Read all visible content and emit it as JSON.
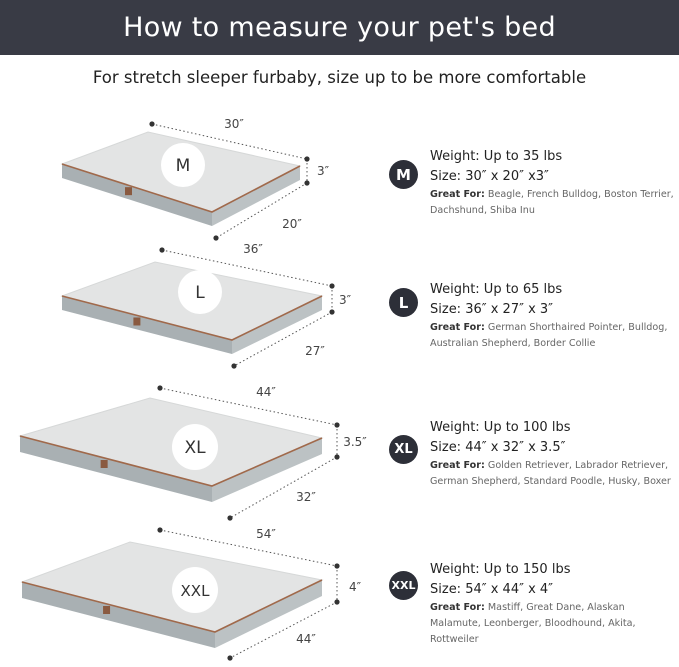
{
  "header": {
    "title": "How to measure your pet's bed"
  },
  "subtitle": "For stretch sleeper furbaby, size up to be more comfortable",
  "great_for_label": "Great For:",
  "colors": {
    "header_bg": "#393b45",
    "badge_bg": "#2d2f38",
    "bed_top": "#e3e4e4",
    "bed_side": "#a9b0b3",
    "piping": "#a0694b"
  },
  "beds": [
    {
      "size": "M",
      "length": "30″",
      "width": "20″",
      "height": "3″",
      "weight": "Weight: Up to 35 lbs",
      "dimensions": "Size: 30″ x 20″ x3″",
      "great_for": "Beagle, French Bulldog, Boston Terrier, Dachshund, Shiba Inu"
    },
    {
      "size": "L",
      "length": "36″",
      "width": "27″",
      "height": "3″",
      "weight": "Weight: Up to 65 lbs",
      "dimensions": "Size: 36″ x 27″ x 3″",
      "great_for": "German Shorthaired Pointer, Bulldog, Australian Shepherd, Border Collie"
    },
    {
      "size": "XL",
      "length": "44″",
      "width": "32″",
      "height": "3.5″",
      "weight": "Weight: Up to 100 lbs",
      "dimensions": "Size:  44″ x 32″ x 3.5″",
      "great_for": "Golden Retriever, Labrador Retriever, German Shepherd, Standard Poodle, Husky, Boxer"
    },
    {
      "size": "XXL",
      "length": "54″",
      "width": "44″",
      "height": "4″",
      "weight": "Weight: Up to 150 lbs",
      "dimensions": "Size:  54″ x 44″ x 4″",
      "great_for": "Mastiff, Great Dane, Alaskan Malamute, Leonberger, Bloodhound, Akita, Rottweiler"
    }
  ]
}
